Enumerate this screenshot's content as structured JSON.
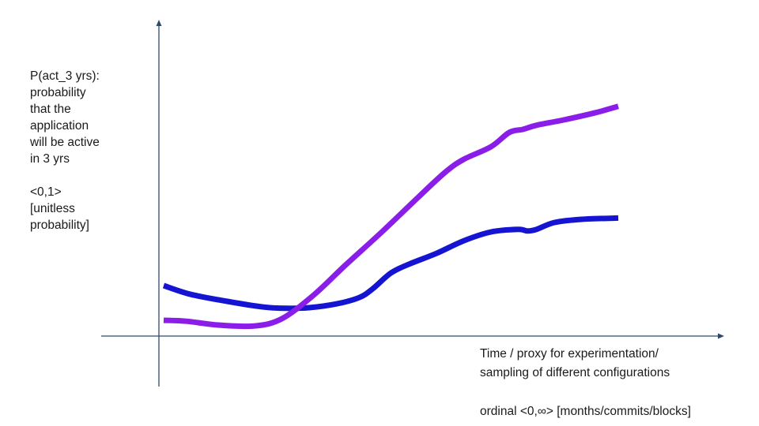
{
  "chart_data": {
    "type": "line",
    "title": "",
    "ylabel_lines": [
      "P(act_3 yrs):",
      "probability",
      "that the",
      "application",
      "will be active",
      "in 3 yrs"
    ],
    "yrange_text": "<0,1>",
    "yunit_lines": [
      "[unitless",
      "probability]"
    ],
    "xlabel_lines": [
      "Time / proxy for experimentation/",
      "sampling of different configurations"
    ],
    "xunit_text": "ordinal <0,∞> [months/commits/blocks]",
    "xlim": [
      0,
      1
    ],
    "ylim": [
      0,
      1
    ],
    "grid": false,
    "legend": "none",
    "series": [
      {
        "color": "#8a1ee8",
        "x": [
          0.0,
          0.05,
          0.12,
          0.2,
          0.26,
          0.33,
          0.4,
          0.48,
          0.56,
          0.62,
          0.66,
          0.72,
          0.76,
          0.79,
          0.82,
          0.88,
          0.95,
          1.0
        ],
        "y": [
          0.05,
          0.047,
          0.035,
          0.032,
          0.055,
          0.13,
          0.225,
          0.33,
          0.44,
          0.52,
          0.56,
          0.6,
          0.645,
          0.655,
          0.668,
          0.685,
          0.708,
          0.728
        ]
      },
      {
        "color": "#1414d2",
        "x": [
          0.0,
          0.06,
          0.14,
          0.22,
          0.27,
          0.32,
          0.38,
          0.43,
          0.46,
          0.5,
          0.54,
          0.6,
          0.66,
          0.72,
          0.78,
          0.8,
          0.82,
          0.86,
          0.92,
          1.0
        ],
        "y": [
          0.16,
          0.132,
          0.11,
          0.092,
          0.088,
          0.09,
          0.102,
          0.122,
          0.15,
          0.2,
          0.228,
          0.262,
          0.302,
          0.33,
          0.338,
          0.333,
          0.338,
          0.36,
          0.37,
          0.374
        ]
      }
    ]
  }
}
